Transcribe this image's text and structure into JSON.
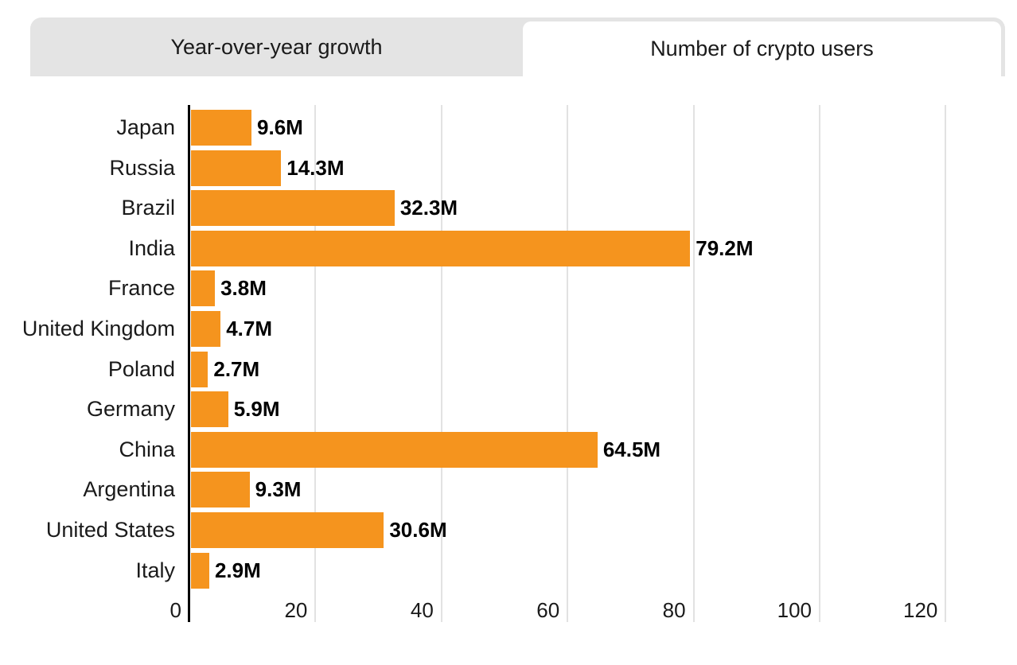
{
  "tabs": {
    "yoy_growth_label": "Year-over-year growth",
    "crypto_users_label": "Number of crypto users",
    "active_tab": "Number of crypto users"
  },
  "chart_data": {
    "type": "bar",
    "orientation": "horizontal",
    "title": "Number of crypto users",
    "categories": [
      "Japan",
      "Russia",
      "Brazil",
      "India",
      "France",
      "United Kingdom",
      "Poland",
      "Germany",
      "China",
      "Argentina",
      "United States",
      "Italy"
    ],
    "values": [
      9.6,
      14.3,
      32.3,
      79.2,
      3.8,
      4.7,
      2.7,
      5.9,
      64.5,
      9.3,
      30.6,
      2.9
    ],
    "value_labels": [
      "9.6M",
      "14.3M",
      "32.3M",
      "79.2M",
      "3.8M",
      "4.7M",
      "2.7M",
      "5.9M",
      "64.5M",
      "9.3M",
      "30.6M",
      "2.9M"
    ],
    "unit": "M",
    "x_ticks": [
      0,
      20,
      40,
      60,
      80,
      100,
      120
    ],
    "x_tick_labels": [
      "0",
      "20",
      "40",
      "60",
      "80",
      "100",
      "120"
    ],
    "xlim": [
      0,
      131
    ],
    "grid": "vertical",
    "legend": "none"
  },
  "colors": {
    "bar": "#f5941e",
    "tab_bar_bg": "#e4e4e4",
    "active_tab_bg": "#ffffff",
    "gridline": "#e2e2e2",
    "axis": "#000000",
    "text": "#1a1a1a"
  }
}
